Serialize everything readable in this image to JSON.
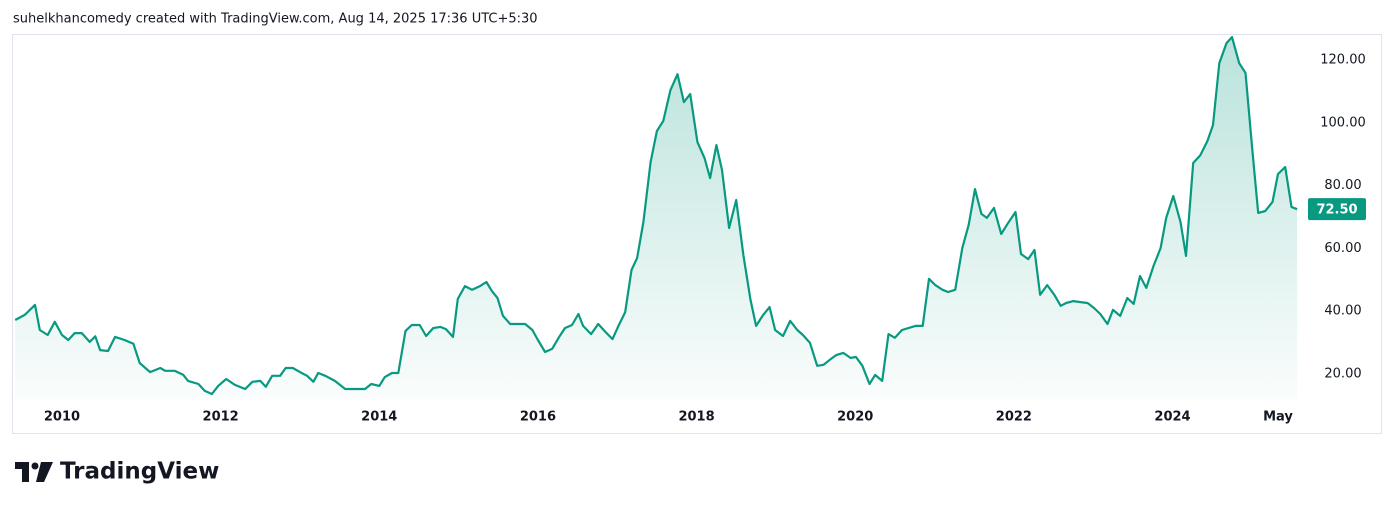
{
  "header": {
    "caption": "suhelkhancomedy created with TradingView.com, Aug 14, 2025 17:36 UTC+5:30"
  },
  "footer": {
    "brand": "TradingView"
  },
  "chart_data": {
    "type": "area",
    "x": [
      2009.41,
      2009.53,
      2009.66,
      2009.72,
      2009.82,
      2009.91,
      2010.0,
      2010.08,
      2010.16,
      2010.25,
      2010.35,
      2010.42,
      2010.48,
      2010.58,
      2010.67,
      2010.79,
      2010.9,
      2010.98,
      2011.11,
      2011.24,
      2011.3,
      2011.42,
      2011.53,
      2011.59,
      2011.72,
      2011.8,
      2011.89,
      2011.97,
      2012.07,
      2012.18,
      2012.31,
      2012.4,
      2012.5,
      2012.57,
      2012.65,
      2012.75,
      2012.82,
      2012.91,
      2013.0,
      2013.09,
      2013.17,
      2013.23,
      2013.32,
      2013.44,
      2013.57,
      2013.69,
      2013.82,
      2013.9,
      2014.0,
      2014.07,
      2014.16,
      2014.24,
      2014.33,
      2014.41,
      2014.51,
      2014.59,
      2014.68,
      2014.77,
      2014.84,
      2014.93,
      2014.99,
      2015.08,
      2015.17,
      2015.27,
      2015.35,
      2015.42,
      2015.49,
      2015.56,
      2015.65,
      2015.74,
      2015.84,
      2015.93,
      2016.0,
      2016.09,
      2016.18,
      2016.26,
      2016.34,
      2016.43,
      2016.51,
      2016.57,
      2016.67,
      2016.76,
      2016.85,
      2016.94,
      2017.01,
      2017.1,
      2017.18,
      2017.25,
      2017.33,
      2017.42,
      2017.5,
      2017.58,
      2017.67,
      2017.76,
      2017.84,
      2017.92,
      2018.01,
      2018.1,
      2018.17,
      2018.25,
      2018.32,
      2018.41,
      2018.5,
      2018.59,
      2018.68,
      2018.75,
      2018.84,
      2018.92,
      2018.99,
      2019.09,
      2019.18,
      2019.27,
      2019.34,
      2019.43,
      2019.52,
      2019.6,
      2019.68,
      2019.76,
      2019.85,
      2019.94,
      2020.01,
      2020.09,
      2020.18,
      2020.25,
      2020.34,
      2020.42,
      2020.5,
      2020.59,
      2020.67,
      2020.76,
      2020.85,
      2020.93,
      2021.01,
      2021.1,
      2021.17,
      2021.26,
      2021.35,
      2021.43,
      2021.51,
      2021.59,
      2021.66,
      2021.75,
      2021.84,
      2021.92,
      2022.02,
      2022.09,
      2022.18,
      2022.26,
      2022.33,
      2022.42,
      2022.51,
      2022.59,
      2022.66,
      2022.75,
      2022.84,
      2022.93,
      2023.01,
      2023.09,
      2023.18,
      2023.25,
      2023.34,
      2023.43,
      2023.51,
      2023.59,
      2023.67,
      2023.76,
      2023.85,
      2023.92,
      2024.01,
      2024.1,
      2024.17,
      2024.26,
      2024.35,
      2024.44,
      2024.51,
      2024.59,
      2024.68,
      2024.75,
      2024.84,
      2024.92,
      2025.01,
      2025.08,
      2025.17,
      2025.26,
      2025.33,
      2025.42,
      2025.5,
      2025.57
    ],
    "series": [
      {
        "color": "#089981",
        "values": [
          37.2,
          38.8,
          42,
          34,
          32.4,
          36.6,
          32.4,
          30.8,
          33,
          33,
          30.2,
          32,
          27.6,
          27.3,
          31.8,
          30.8,
          29.6,
          23.5,
          20.6,
          21.9,
          21,
          21,
          19.7,
          17.8,
          16.8,
          14.6,
          13.6,
          16.2,
          18.4,
          16.5,
          15.2,
          17.5,
          17.8,
          15.9,
          19.4,
          19.4,
          21.9,
          21.9,
          20.6,
          19.4,
          17.5,
          20.3,
          19.4,
          17.8,
          15.2,
          15.2,
          15.2,
          16.8,
          16.2,
          19,
          20.3,
          20.3,
          33.7,
          35.6,
          35.6,
          32.1,
          34.6,
          35,
          34.3,
          31.8,
          43.9,
          48,
          46.8,
          48,
          49.3,
          46.4,
          44.2,
          38.5,
          35.9,
          35.9,
          35.9,
          34,
          30.8,
          27,
          28,
          31.5,
          34.6,
          35.6,
          39.1,
          35.3,
          32.7,
          35.9,
          33.4,
          31.1,
          35,
          39.7,
          53.1,
          56.9,
          68.4,
          87.5,
          97.4,
          100.6,
          110.4,
          115.5,
          106.6,
          109.2,
          93.9,
          88.8,
          82.4,
          92.9,
          85,
          66.5,
          75.4,
          57.8,
          43.6,
          35.3,
          38.8,
          41.3,
          34,
          32.1,
          36.9,
          34,
          32.4,
          29.9,
          22.6,
          22.9,
          24.5,
          26,
          26.7,
          25.1,
          25.4,
          22.6,
          16.8,
          19.7,
          17.8,
          32.7,
          31.5,
          34,
          34.6,
          35.3,
          35.3,
          50.3,
          48.3,
          46.8,
          46.1,
          46.8,
          60.1,
          67.5,
          78.9,
          71,
          69.7,
          72.9,
          64.6,
          67.8,
          71.6,
          58.2,
          56.6,
          59.5,
          45.2,
          48.3,
          45.2,
          41.7,
          42.6,
          43.2,
          42.9,
          42.6,
          41,
          39.1,
          35.9,
          40.4,
          38.5,
          44.2,
          42.3,
          51.2,
          47.4,
          54.4,
          60.1,
          69.7,
          76.7,
          68.4,
          57.6,
          87.2,
          89.7,
          94.2,
          99.3,
          119,
          125.4,
          127.3,
          119,
          115.9,
          90.4,
          71.3,
          71.9,
          74.8,
          83.7,
          85.9,
          73.2,
          72.5
        ]
      }
    ],
    "last_label": "72.50",
    "xlim": [
      2009.37,
      2025.67
    ],
    "xticks": [
      2010,
      2012,
      2014,
      2016,
      2018,
      2020,
      2022,
      2024,
      {
        "value": 2025.33,
        "label": "May"
      }
    ],
    "ylim": [
      11.7,
      128.3
    ],
    "yticks": [
      {
        "value": 20,
        "label": "20.00"
      },
      {
        "value": 40,
        "label": "40.00"
      },
      {
        "value": 60,
        "label": "60.00"
      },
      {
        "value": 80,
        "label": "80.00"
      },
      {
        "value": 100,
        "label": "100.00"
      },
      {
        "value": 120,
        "label": "120.00"
      }
    ],
    "grid": false
  }
}
